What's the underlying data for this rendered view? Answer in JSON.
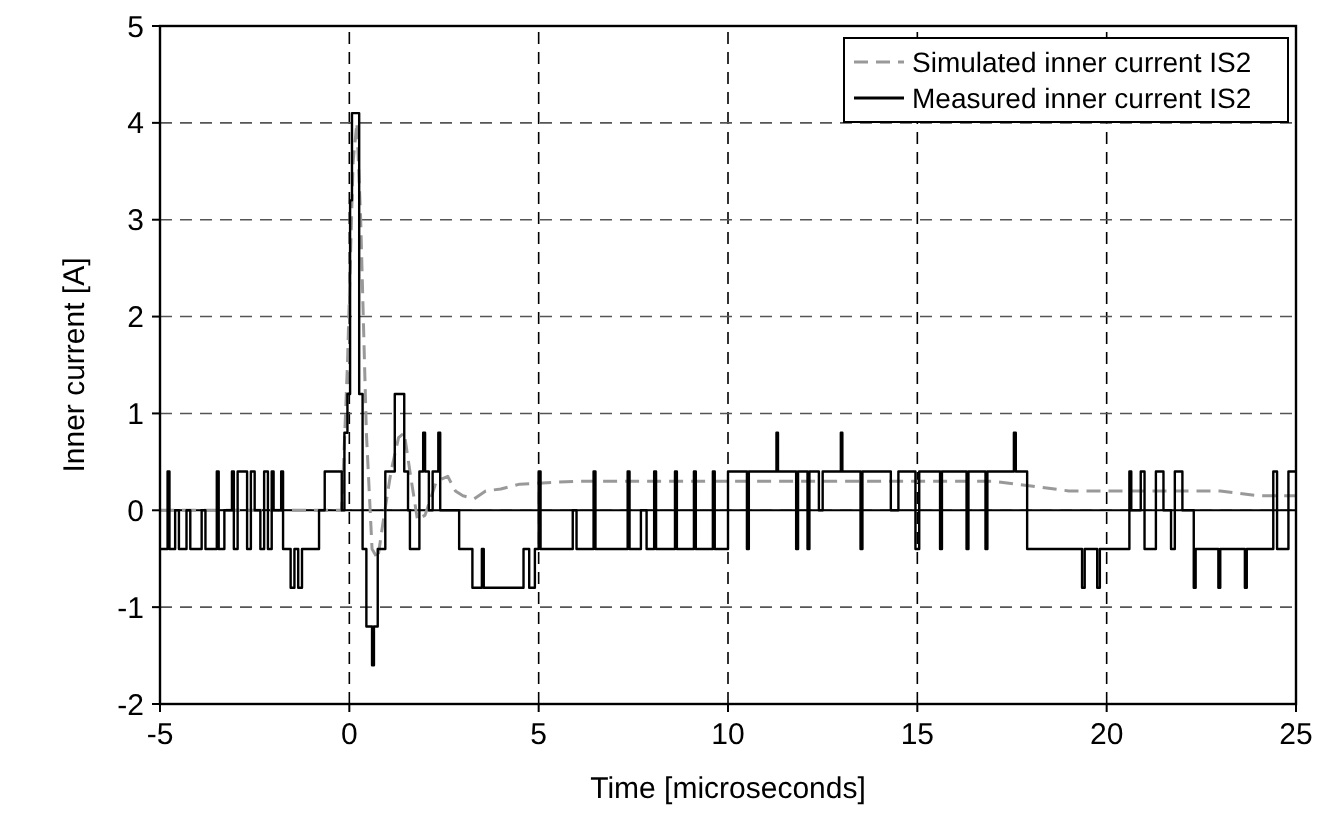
{
  "chart_data": {
    "type": "line",
    "xlabel": "Time [microseconds]",
    "ylabel": "Inner current [A]",
    "xlim": [
      -5,
      25
    ],
    "ylim": [
      -2,
      5
    ],
    "xticks": [
      -5,
      0,
      5,
      10,
      15,
      20,
      25
    ],
    "yticks": [
      -2,
      -1,
      0,
      1,
      2,
      3,
      4,
      5
    ],
    "grid": true,
    "legend": "top right",
    "series": [
      {
        "name": "Simulated inner current IS2",
        "type": "line",
        "line_style": "dashed",
        "color": "#999999",
        "x": [
          -5,
          -0.2,
          -0.05,
          0.1,
          0.2,
          0.3,
          0.45,
          0.6,
          0.75,
          0.9,
          1.1,
          1.3,
          1.45,
          1.6,
          1.8,
          2.0,
          2.3,
          2.6,
          2.8,
          3.0,
          3.3,
          3.6,
          4.0,
          4.5,
          5,
          6,
          8,
          10,
          12,
          14,
          16,
          17,
          18,
          19,
          20,
          22,
          23,
          24,
          25
        ],
        "values": [
          0,
          0,
          1.5,
          3.6,
          4.0,
          3.0,
          0.8,
          -0.4,
          -0.5,
          -0.1,
          0.4,
          0.75,
          0.8,
          0.4,
          -0.1,
          -0.05,
          0.3,
          0.35,
          0.2,
          0.15,
          0.12,
          0.2,
          0.22,
          0.27,
          0.28,
          0.3,
          0.3,
          0.3,
          0.3,
          0.3,
          0.3,
          0.3,
          0.25,
          0.2,
          0.2,
          0.2,
          0.2,
          0.15,
          0.15
        ]
      },
      {
        "name": "Measured inner current IS2",
        "type": "step",
        "line_style": "solid",
        "color": "#000000",
        "x": [
          -5,
          -4.8,
          -4.75,
          -4.6,
          -4.5,
          -4.3,
          -4.2,
          -3.9,
          -3.8,
          -3.5,
          -3.45,
          -3.3,
          -3.1,
          -3.05,
          -2.95,
          -2.7,
          -2.6,
          -2.5,
          -2.35,
          -2.25,
          -2.15,
          -2.05,
          -2.0,
          -1.8,
          -1.75,
          -1.55,
          -1.45,
          -1.35,
          -1.25,
          -0.8,
          -0.65,
          -0.2,
          -0.13,
          -0.05,
          0.02,
          0.07,
          0.26,
          0.35,
          0.45,
          0.6,
          0.65,
          0.75,
          0.95,
          1.2,
          1.45,
          1.55,
          1.6,
          1.85,
          1.95,
          2.0,
          2.1,
          2.2,
          2.35,
          2.4,
          2.9,
          3.25,
          3.5,
          3.55,
          4.6,
          4.75,
          4.9,
          5.0,
          5.05,
          5.9,
          6.0,
          6.45,
          6.5,
          7.35,
          7.4,
          7.7,
          7.85,
          8.05,
          8.1,
          8.6,
          8.65,
          9.1,
          9.15,
          9.6,
          9.65,
          10.0,
          10.5,
          10.55,
          11.28,
          11.32,
          11.8,
          11.85,
          12.1,
          12.15,
          12.4,
          12.5,
          12.98,
          13.02,
          13.5,
          13.55,
          14.3,
          14.5,
          14.95,
          15.05,
          15.6,
          15.65,
          16.3,
          16.35,
          16.8,
          16.85,
          17.55,
          17.6,
          17.9,
          19.35,
          19.42,
          19.75,
          19.82,
          20.6,
          20.65,
          20.9,
          21.0,
          21.3,
          21.5,
          21.7,
          21.8,
          22.0,
          22.3,
          22.35,
          22.95,
          23.0,
          23.65,
          23.7,
          24.4,
          24.5,
          24.8,
          25
        ],
        "values": [
          -0.4,
          0.4,
          -0.4,
          0,
          -0.4,
          0,
          -0.4,
          0,
          -0.4,
          0.4,
          -0.4,
          0,
          0.4,
          -0.4,
          0.4,
          -0.4,
          0.4,
          0,
          -0.4,
          0.4,
          -0.4,
          0.4,
          0,
          0.4,
          -0.4,
          -0.8,
          -0.4,
          -0.8,
          -0.4,
          0,
          0.4,
          0,
          0.8,
          1.2,
          3.2,
          4.1,
          1.2,
          -0.4,
          -1.2,
          -1.6,
          -1.2,
          -0.4,
          0.4,
          1.2,
          0.4,
          0,
          -0.4,
          0.4,
          0.8,
          0.4,
          0,
          0.4,
          0.8,
          0,
          -0.4,
          -0.8,
          -0.4,
          -0.8,
          -0.4,
          -0.8,
          -0.4,
          0.4,
          -0.4,
          0,
          -0.4,
          0.4,
          -0.4,
          0.4,
          -0.4,
          0,
          -0.4,
          0.4,
          -0.4,
          0.4,
          -0.4,
          0.4,
          -0.4,
          0.4,
          -0.4,
          0.4,
          -0.4,
          0.4,
          0.8,
          0.4,
          -0.4,
          0.4,
          -0.4,
          0.4,
          0,
          0.4,
          0.8,
          0.4,
          -0.4,
          0.4,
          0,
          0.4,
          -0.4,
          0.4,
          -0.4,
          0.4,
          -0.4,
          0.4,
          -0.4,
          0.4,
          0.8,
          0.4,
          -0.4,
          -0.8,
          -0.4,
          -0.8,
          -0.4,
          0.4,
          0,
          0.4,
          -0.4,
          0.4,
          0,
          -0.4,
          0.4,
          0,
          -0.8,
          -0.4,
          -0.8,
          -0.4,
          -0.8,
          -0.4,
          0.4,
          -0.4,
          0.4,
          0.4
        ]
      }
    ]
  }
}
